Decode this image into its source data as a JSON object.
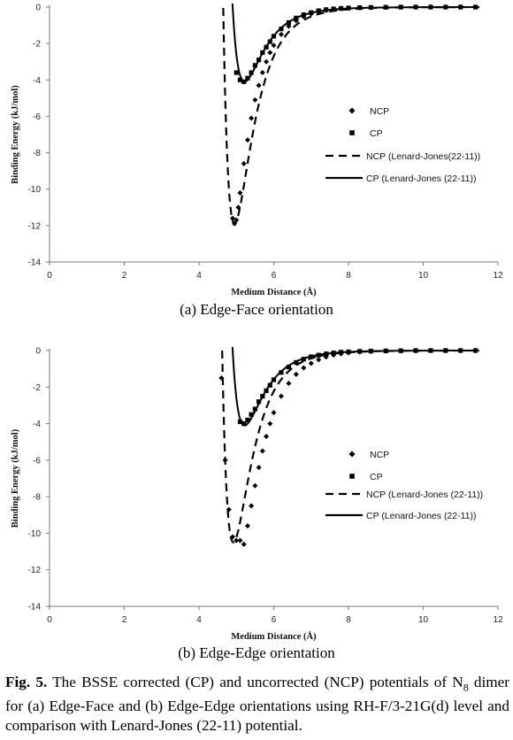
{
  "chart_data": [
    {
      "type": "scatter",
      "subcaption": "(a) Edge-Face orientation",
      "xlabel": "Medium Distance (Å)",
      "ylabel": "Binding Energy (kJ/mol)",
      "xlim": [
        0,
        12
      ],
      "ylim": [
        -14,
        0
      ],
      "xticks": [
        "0",
        "2",
        "4",
        "6",
        "8",
        "10",
        "12"
      ],
      "yticks": [
        "0",
        "-2",
        "-4",
        "-6",
        "-8",
        "-10",
        "-12",
        "-14"
      ],
      "legend_position": "right",
      "series": [
        {
          "name": "NCP",
          "kind": "points",
          "marker": "diamond",
          "x": [
            4.9,
            4.95,
            5.0,
            5.05,
            5.1,
            5.2,
            5.3,
            5.4,
            5.5,
            5.6,
            5.7,
            5.8,
            5.9,
            6.0,
            6.2,
            6.4,
            6.6,
            6.8,
            7.0,
            7.2,
            7.4,
            7.6,
            7.8,
            8.0,
            8.3,
            8.6,
            9.0,
            9.4,
            9.8,
            10.2,
            10.6,
            11.0,
            11.4
          ],
          "y": [
            -11.6,
            -11.9,
            -11.7,
            -11.0,
            -10.2,
            -8.6,
            -7.3,
            -6.1,
            -5.1,
            -4.3,
            -3.6,
            -3.0,
            -2.5,
            -2.1,
            -1.5,
            -1.05,
            -0.75,
            -0.52,
            -0.37,
            -0.26,
            -0.18,
            -0.13,
            -0.09,
            -0.06,
            -0.04,
            -0.02,
            -0.01,
            0,
            0,
            0,
            0,
            0,
            0
          ]
        },
        {
          "name": "CP",
          "kind": "points",
          "marker": "square",
          "x": [
            5.0,
            5.1,
            5.2,
            5.3,
            5.4,
            5.5,
            5.6,
            5.7,
            5.8,
            5.9,
            6.0,
            6.2,
            6.4,
            6.6,
            6.8,
            7.0,
            7.2,
            7.4,
            7.6,
            7.8,
            8.0,
            8.3,
            8.6,
            9.0,
            9.4,
            9.8,
            10.2,
            10.6,
            11.0,
            11.4
          ],
          "y": [
            -3.6,
            -4.0,
            -4.1,
            -3.9,
            -3.6,
            -3.2,
            -2.9,
            -2.5,
            -2.2,
            -1.9,
            -1.6,
            -1.2,
            -0.85,
            -0.6,
            -0.42,
            -0.3,
            -0.2,
            -0.14,
            -0.1,
            -0.07,
            -0.05,
            -0.03,
            -0.02,
            -0.01,
            0,
            0,
            0,
            0,
            0,
            0
          ]
        },
        {
          "name": "NCP (Lenard-Jones(22-11))",
          "kind": "line",
          "dash": true,
          "epsilon": 11.9,
          "rmin": 4.95,
          "from": 4.6,
          "to": 11.5
        },
        {
          "name": "CP (Lenard-Jones (22-11))",
          "kind": "line",
          "dash": false,
          "epsilon": 4.1,
          "rmin": 5.22,
          "from": 4.85,
          "to": 11.5
        }
      ]
    },
    {
      "type": "scatter",
      "subcaption": "(b) Edge-Edge orientation",
      "xlabel": "Medium Distance (Å)",
      "ylabel": "Binding Energy (kJ/mol)",
      "xlim": [
        0,
        12
      ],
      "ylim": [
        -14,
        0
      ],
      "xticks": [
        "0",
        "2",
        "4",
        "6",
        "8",
        "10",
        "12"
      ],
      "yticks": [
        "0",
        "-2",
        "-4",
        "-6",
        "-8",
        "-10",
        "-12",
        "-14"
      ],
      "legend_position": "right",
      "series": [
        {
          "name": "NCP",
          "kind": "points",
          "marker": "diamond",
          "x": [
            4.6,
            4.7,
            4.8,
            4.9,
            5.0,
            5.1,
            5.2,
            5.3,
            5.4,
            5.5,
            5.6,
            5.7,
            5.8,
            5.9,
            6.0,
            6.2,
            6.4,
            6.6,
            6.8,
            7.0,
            7.2,
            7.4,
            7.6,
            7.8,
            8.0,
            8.3,
            8.6,
            9.0,
            9.4,
            9.8,
            10.2,
            10.6,
            11.0,
            11.4
          ],
          "y": [
            -1.5,
            -6.0,
            -8.7,
            -10.2,
            -10.4,
            -10.4,
            -10.6,
            -9.6,
            -8.5,
            -7.4,
            -6.4,
            -5.5,
            -4.7,
            -4.0,
            -3.4,
            -2.5,
            -1.8,
            -1.3,
            -0.95,
            -0.7,
            -0.5,
            -0.35,
            -0.25,
            -0.18,
            -0.13,
            -0.08,
            -0.05,
            -0.03,
            -0.02,
            -0.01,
            0,
            0,
            0,
            0
          ]
        },
        {
          "name": "CP",
          "kind": "points",
          "marker": "square",
          "x": [
            5.1,
            5.2,
            5.3,
            5.4,
            5.5,
            5.6,
            5.7,
            5.8,
            5.9,
            6.0,
            6.2,
            6.4,
            6.6,
            6.8,
            7.0,
            7.2,
            7.4,
            7.6,
            7.8,
            8.0,
            8.3,
            8.6,
            9.0,
            9.4,
            9.8,
            10.2,
            10.6,
            11.0,
            11.4
          ],
          "y": [
            -3.9,
            -4.0,
            -3.8,
            -3.5,
            -3.2,
            -2.8,
            -2.5,
            -2.2,
            -1.9,
            -1.6,
            -1.2,
            -0.9,
            -0.65,
            -0.47,
            -0.34,
            -0.25,
            -0.18,
            -0.13,
            -0.09,
            -0.07,
            -0.04,
            -0.03,
            -0.02,
            -0.01,
            0,
            0,
            0,
            0,
            0
          ]
        },
        {
          "name": "NCP (Lenard-Jones (22-11))",
          "kind": "line",
          "dash": true,
          "epsilon": 10.5,
          "rmin": 4.92,
          "from": 4.55,
          "to": 11.5
        },
        {
          "name": "CP (Lenard-Jones (22-11))",
          "kind": "line",
          "dash": false,
          "epsilon": 4.1,
          "rmin": 5.22,
          "from": 4.85,
          "to": 11.5
        }
      ]
    }
  ],
  "caption": {
    "label": "Fig. 5.",
    "text_1": "The BSSE corrected (CP) and uncorrected (NCP) potentials of N",
    "subscript": "8",
    "text_2": "dimer for (a) Edge-Face and (b) Edge-Edge orientations using RH-F/3-21G(d) level and comparison with Lenard-Jones (22-11) potential."
  }
}
